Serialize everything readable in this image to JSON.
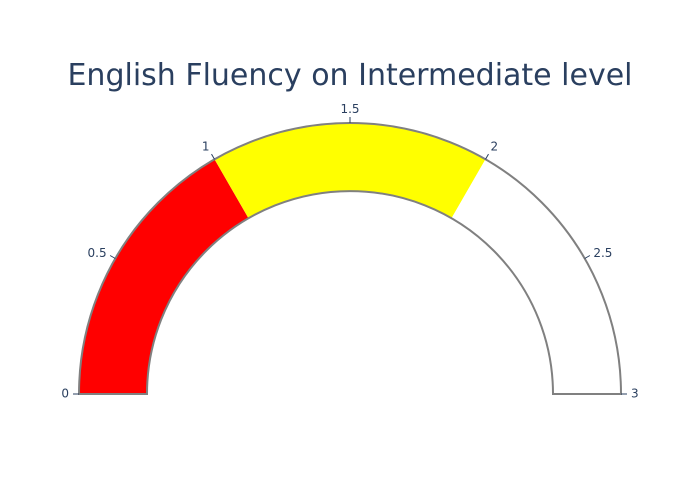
{
  "chart_data": {
    "type": "gauge",
    "title": "English Fluency on Intermediate level",
    "axis_range": [
      0,
      3
    ],
    "ticks": [
      {
        "value": 0,
        "label": "0"
      },
      {
        "value": 0.5,
        "label": "0.5"
      },
      {
        "value": 1,
        "label": "1"
      },
      {
        "value": 1.5,
        "label": "1.5"
      },
      {
        "value": 2,
        "label": "2"
      },
      {
        "value": 2.5,
        "label": "2.5"
      },
      {
        "value": 3,
        "label": "3"
      }
    ],
    "steps": [
      {
        "range": [
          0,
          1
        ],
        "color": "#ff0000"
      },
      {
        "range": [
          1,
          2
        ],
        "color": "#ffff00"
      },
      {
        "range": [
          2,
          3
        ],
        "color": "#ffffff"
      }
    ],
    "border_color": "#808080",
    "text_color": "#2a3f5f"
  }
}
